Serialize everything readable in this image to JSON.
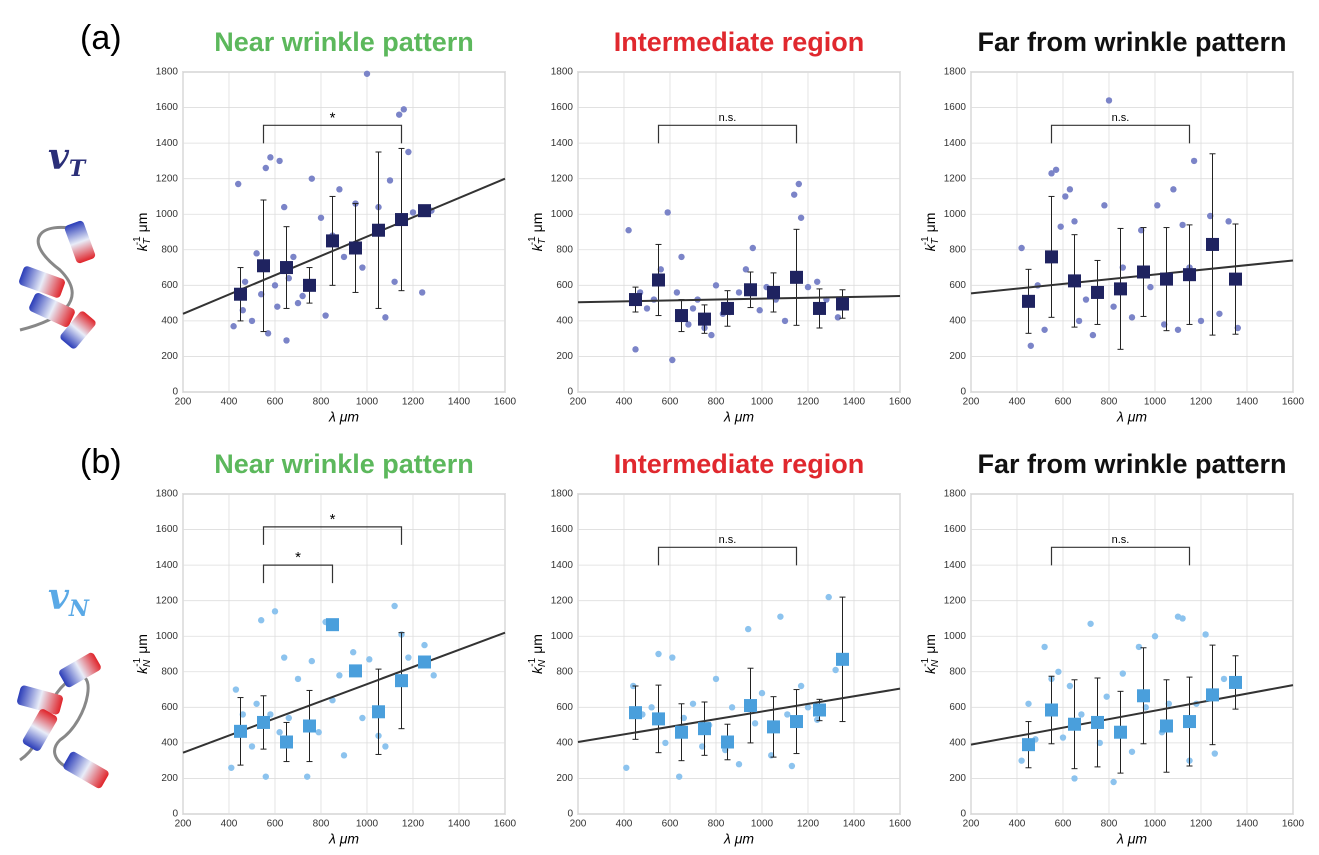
{
  "panel_labels": [
    "(a)",
    "(b)"
  ],
  "side_labels": [
    {
      "symbol": "v",
      "sub": "T",
      "color": "#2b2f78"
    },
    {
      "symbol": "v",
      "sub": "N",
      "color": "#5aa9e6"
    }
  ],
  "chart_data": [
    {
      "type": "scatter",
      "title": "Near wrinkle pattern",
      "title_color": "#5cb85c",
      "xlabel": "λ μm",
      "ylabel": {
        "main": "k",
        "sub": "T",
        "sup": "-1",
        "unit": "μm"
      },
      "xlim": [
        200,
        1600
      ],
      "ylim": [
        0,
        1800
      ],
      "xticks": [
        200,
        400,
        600,
        800,
        1000,
        1200,
        1400,
        1600
      ],
      "yticks": [
        0,
        200,
        400,
        600,
        800,
        1000,
        1200,
        1400,
        1600,
        1800
      ],
      "grid": true,
      "series": [
        {
          "x": [
            420,
            440,
            460,
            470,
            500,
            520,
            540,
            560,
            570,
            580,
            600,
            610,
            620,
            640,
            650,
            660,
            680,
            700,
            720,
            760,
            800,
            820,
            850,
            880,
            900,
            950,
            980,
            1000,
            1050,
            1080,
            1100,
            1120,
            1140,
            1160,
            1180,
            1200,
            1240,
            1280
          ],
          "values": [
            370,
            1170,
            460,
            620,
            400,
            780,
            550,
            1260,
            330,
            1320,
            600,
            480,
            1300,
            1040,
            290,
            640,
            760,
            500,
            540,
            1200,
            980,
            430,
            880,
            1140,
            760,
            1060,
            700,
            1790,
            1040,
            420,
            1190,
            620,
            1560,
            1590,
            1350,
            1010,
            560,
            1020
          ],
          "color": "#7b84c8"
        },
        {
          "x": [
            450,
            550,
            650,
            750,
            850,
            950,
            1050,
            1150,
            1250
          ],
          "values": [
            550,
            710,
            700,
            600,
            850,
            810,
            910,
            970,
            1020
          ],
          "errors": [
            150,
            370,
            230,
            100,
            250,
            250,
            440,
            400,
            0
          ],
          "color": "#1f2360",
          "marker": "square"
        }
      ],
      "fit": {
        "x": [
          200,
          1600
        ],
        "values": [
          440,
          1200
        ]
      },
      "brackets": [
        {
          "x": [
            550,
            1150
          ],
          "y": 1500,
          "label": "*"
        }
      ]
    },
    {
      "type": "scatter",
      "title": "Intermediate region",
      "title_color": "#e0282e",
      "xlabel": "λ μm",
      "ylabel": {
        "main": "k",
        "sub": "T",
        "sup": "-1",
        "unit": "μm"
      },
      "xlim": [
        200,
        1600
      ],
      "ylim": [
        0,
        1800
      ],
      "xticks": [
        200,
        400,
        600,
        800,
        1000,
        1200,
        1400,
        1600
      ],
      "yticks": [
        0,
        200,
        400,
        600,
        800,
        1000,
        1200,
        1400,
        1600,
        1800
      ],
      "grid": true,
      "series": [
        {
          "x": [
            420,
            450,
            470,
            500,
            530,
            560,
            590,
            610,
            630,
            650,
            680,
            700,
            720,
            750,
            780,
            800,
            830,
            860,
            900,
            930,
            960,
            990,
            1020,
            1060,
            1100,
            1140,
            1160,
            1170,
            1200,
            1240,
            1280,
            1330
          ],
          "values": [
            910,
            240,
            560,
            470,
            520,
            690,
            1010,
            180,
            560,
            760,
            380,
            470,
            520,
            360,
            320,
            600,
            440,
            450,
            560,
            690,
            810,
            460,
            590,
            520,
            400,
            1110,
            1170,
            980,
            590,
            620,
            520,
            420
          ],
          "color": "#7b84c8"
        },
        {
          "x": [
            450,
            550,
            650,
            750,
            850,
            950,
            1050,
            1150,
            1250,
            1350
          ],
          "values": [
            520,
            630,
            430,
            410,
            470,
            575,
            560,
            645,
            470,
            495
          ],
          "errors": [
            70,
            200,
            90,
            80,
            100,
            100,
            110,
            270,
            110,
            80
          ],
          "color": "#1f2360",
          "marker": "square"
        }
      ],
      "fit": {
        "x": [
          200,
          1600
        ],
        "values": [
          505,
          540
        ]
      },
      "brackets": [
        {
          "x": [
            550,
            1150
          ],
          "y": 1500,
          "label": "n.s."
        }
      ]
    },
    {
      "type": "scatter",
      "title": "Far from wrinkle pattern",
      "title_color": "#111111",
      "xlabel": "λ μm",
      "ylabel": {
        "main": "k",
        "sub": "T",
        "sup": "-1",
        "unit": "μm"
      },
      "xlim": [
        200,
        1600
      ],
      "ylim": [
        0,
        1800
      ],
      "xticks": [
        200,
        400,
        600,
        800,
        1000,
        1200,
        1400,
        1600
      ],
      "yticks": [
        0,
        200,
        400,
        600,
        800,
        1000,
        1200,
        1400,
        1600,
        1800
      ],
      "grid": true,
      "series": [
        {
          "x": [
            420,
            460,
            490,
            520,
            550,
            570,
            590,
            610,
            630,
            650,
            670,
            700,
            730,
            780,
            800,
            820,
            860,
            900,
            940,
            980,
            1010,
            1040,
            1080,
            1100,
            1120,
            1150,
            1170,
            1200,
            1240,
            1280,
            1320,
            1360
          ],
          "values": [
            810,
            260,
            600,
            350,
            1230,
            1250,
            930,
            1100,
            1140,
            960,
            400,
            520,
            320,
            1050,
            1640,
            480,
            700,
            420,
            910,
            590,
            1050,
            380,
            1140,
            350,
            940,
            700,
            1300,
            400,
            990,
            440,
            960,
            360
          ],
          "color": "#7b84c8"
        },
        {
          "x": [
            450,
            550,
            650,
            750,
            850,
            950,
            1050,
            1150,
            1250,
            1350
          ],
          "values": [
            510,
            760,
            625,
            560,
            580,
            675,
            635,
            660,
            830,
            635
          ],
          "errors": [
            180,
            340,
            260,
            180,
            340,
            250,
            290,
            280,
            510,
            310
          ],
          "color": "#1f2360",
          "marker": "square"
        }
      ],
      "fit": {
        "x": [
          200,
          1600
        ],
        "values": [
          555,
          740
        ]
      },
      "brackets": [
        {
          "x": [
            550,
            1150
          ],
          "y": 1500,
          "label": "n.s."
        }
      ]
    },
    {
      "type": "scatter",
      "title": "Near wrinkle pattern",
      "title_color": "#5cb85c",
      "xlabel": "λ μm",
      "ylabel": {
        "main": "k",
        "sub": "N",
        "sup": "-1",
        "unit": "μm"
      },
      "xlim": [
        200,
        1600
      ],
      "ylim": [
        0,
        1800
      ],
      "xticks": [
        200,
        400,
        600,
        800,
        1000,
        1200,
        1400,
        1600
      ],
      "yticks": [
        0,
        200,
        400,
        600,
        800,
        1000,
        1200,
        1400,
        1600,
        1800
      ],
      "grid": true,
      "series": [
        {
          "x": [
            410,
            430,
            460,
            500,
            520,
            540,
            560,
            580,
            600,
            620,
            640,
            660,
            700,
            740,
            760,
            790,
            820,
            850,
            880,
            900,
            940,
            980,
            1010,
            1050,
            1080,
            1120,
            1150,
            1180,
            1250,
            1290
          ],
          "values": [
            260,
            700,
            560,
            380,
            620,
            1090,
            210,
            560,
            1140,
            460,
            880,
            540,
            760,
            210,
            860,
            460,
            1080,
            640,
            780,
            330,
            910,
            540,
            870,
            440,
            380,
            1170,
            1010,
            880,
            950,
            780
          ],
          "color": "#8cc3ee"
        },
        {
          "x": [
            450,
            550,
            650,
            750,
            850,
            950,
            1050,
            1150,
            1250
          ],
          "values": [
            465,
            515,
            405,
            495,
            1065,
            805,
            575,
            750,
            855
          ],
          "errors": [
            190,
            150,
            110,
            200,
            0,
            0,
            240,
            270,
            0
          ],
          "color": "#4a9fdc",
          "marker": "square"
        }
      ],
      "fit": {
        "x": [
          200,
          1600
        ],
        "values": [
          345,
          1020
        ]
      },
      "brackets": [
        {
          "x": [
            550,
            1150
          ],
          "y": 1615,
          "label": "*"
        },
        {
          "x": [
            550,
            850
          ],
          "y": 1400,
          "label": "*"
        }
      ]
    },
    {
      "type": "scatter",
      "title": "Intermediate region",
      "title_color": "#e0282e",
      "xlabel": "λ μm",
      "ylabel": {
        "main": "k",
        "sub": "N",
        "sup": "-1",
        "unit": "μm"
      },
      "xlim": [
        200,
        1600
      ],
      "ylim": [
        0,
        1800
      ],
      "xticks": [
        200,
        400,
        600,
        800,
        1000,
        1200,
        1400,
        1600
      ],
      "yticks": [
        0,
        200,
        400,
        600,
        800,
        1000,
        1200,
        1400,
        1600,
        1800
      ],
      "grid": true,
      "series": [
        {
          "x": [
            410,
            440,
            480,
            520,
            550,
            580,
            610,
            640,
            660,
            700,
            740,
            770,
            800,
            840,
            870,
            900,
            940,
            970,
            1000,
            1040,
            1080,
            1110,
            1130,
            1170,
            1200,
            1240,
            1290,
            1320
          ],
          "values": [
            260,
            720,
            560,
            600,
            900,
            400,
            880,
            210,
            540,
            620,
            380,
            500,
            760,
            360,
            600,
            280,
            1040,
            510,
            680,
            330,
            1110,
            560,
            270,
            720,
            600,
            530,
            1220,
            810
          ],
          "color": "#8cc3ee"
        },
        {
          "x": [
            450,
            550,
            650,
            750,
            850,
            950,
            1050,
            1150,
            1250,
            1350
          ],
          "values": [
            570,
            535,
            460,
            480,
            405,
            610,
            490,
            520,
            585,
            870
          ],
          "errors": [
            150,
            190,
            160,
            150,
            100,
            210,
            170,
            180,
            60,
            350
          ],
          "color": "#4a9fdc",
          "marker": "square"
        }
      ],
      "fit": {
        "x": [
          200,
          1600
        ],
        "values": [
          405,
          705
        ]
      },
      "brackets": [
        {
          "x": [
            550,
            1150
          ],
          "y": 1500,
          "label": "n.s."
        }
      ]
    },
    {
      "type": "scatter",
      "title": "Far from wrinkle pattern",
      "title_color": "#111111",
      "xlabel": "λ μm",
      "ylabel": {
        "main": "k",
        "sub": "N",
        "sup": "-1",
        "unit": "μm"
      },
      "xlim": [
        200,
        1600
      ],
      "ylim": [
        0,
        1800
      ],
      "xticks": [
        200,
        400,
        600,
        800,
        1000,
        1200,
        1400,
        1600
      ],
      "yticks": [
        0,
        200,
        400,
        600,
        800,
        1000,
        1200,
        1400,
        1600,
        1800
      ],
      "grid": true,
      "series": [
        {
          "x": [
            420,
            450,
            480,
            520,
            550,
            580,
            600,
            630,
            650,
            680,
            720,
            760,
            790,
            820,
            860,
            900,
            930,
            960,
            1000,
            1030,
            1060,
            1100,
            1120,
            1150,
            1180,
            1220,
            1260,
            1300
          ],
          "values": [
            300,
            620,
            420,
            940,
            760,
            800,
            430,
            720,
            200,
            560,
            1070,
            400,
            660,
            180,
            790,
            350,
            940,
            600,
            1000,
            460,
            620,
            1110,
            1100,
            300,
            620,
            1010,
            340,
            760
          ],
          "color": "#8cc3ee"
        },
        {
          "x": [
            450,
            550,
            650,
            750,
            850,
            950,
            1050,
            1150,
            1250,
            1350
          ],
          "values": [
            390,
            585,
            505,
            515,
            460,
            665,
            495,
            520,
            670,
            740
          ],
          "errors": [
            130,
            190,
            250,
            250,
            230,
            270,
            260,
            250,
            280,
            150
          ],
          "color": "#4a9fdc",
          "marker": "square"
        }
      ],
      "fit": {
        "x": [
          200,
          1600
        ],
        "values": [
          390,
          725
        ]
      },
      "brackets": [
        {
          "x": [
            550,
            1150
          ],
          "y": 1500,
          "label": "n.s."
        }
      ]
    }
  ]
}
